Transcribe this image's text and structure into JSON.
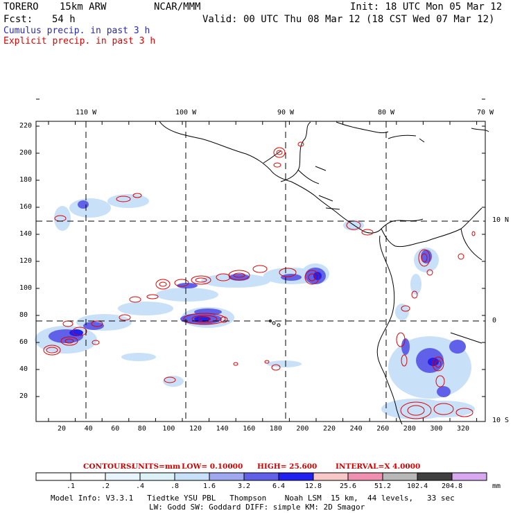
{
  "header": {
    "model": "TORERO",
    "resolution": "15km ARW",
    "org": "NCAR/MMM",
    "init": "Init: 18 UTC Mon 05 Mar 12",
    "fcst_label": "Fcst:",
    "fcst_value": "54 h",
    "valid": "Valid: 00 UTC Thu 08 Mar 12 (18 CST Wed 07 Mar 12)"
  },
  "legend": {
    "cumulus": "Cumulus precip. in past 3 h",
    "explicit": "Explicit precip. in past 3 h"
  },
  "map": {
    "top_lon_labels": [
      "110 W",
      "100 W",
      "90 W",
      "80 W",
      "70 W"
    ],
    "right_lat_labels": [
      "10 N",
      "0",
      "10 S"
    ],
    "x_ticks": [
      "20",
      "40",
      "60",
      "80",
      "100",
      "120",
      "140",
      "160",
      "180",
      "200",
      "220",
      "240",
      "260",
      "280",
      "300",
      "320"
    ],
    "y_ticks": [
      "20",
      "40",
      "60",
      "80",
      "100",
      "120",
      "140",
      "160",
      "180",
      "200",
      "220"
    ],
    "contour_color": "#e00000",
    "land_outline_color": "#000000"
  },
  "contours_line": {
    "label": "CONTOURS:",
    "units": "UNITS=mm",
    "low": "LOW= 0.10000",
    "high": "HIGH= 25.600",
    "interval": "INTERVAL=X 4.0000"
  },
  "colorbar": {
    "labels": [
      ".1",
      ".2",
      ".4",
      ".8",
      "1.6",
      "3.2",
      "6.4",
      "12.8",
      "25.6",
      "51.2",
      "102.4",
      "204.8"
    ],
    "unit": "mm",
    "colors": [
      "#ffffff",
      "#ffffff",
      "#e8f4ff",
      "#dcf2f6",
      "#c8e0f8",
      "#a0a8f0",
      "#6060e8",
      "#2020f0",
      "#f8c8c8",
      "#f090b0",
      "#b8b8b8",
      "#404040",
      "#d8a8f0"
    ]
  },
  "footer": {
    "line1": "Model Info: V3.3.1   Tiedtke YSU PBL   Thompson    Noah LSM  15 km,  44 levels,   33 sec",
    "line2": "LW: Godd SW: Goddard DIFF: simple KM: 2D Smagor"
  }
}
